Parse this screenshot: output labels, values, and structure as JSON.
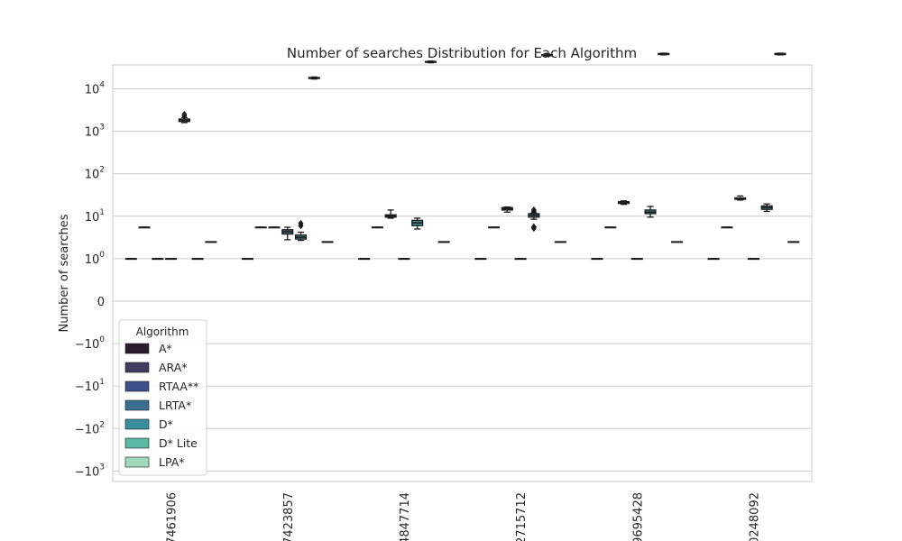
{
  "chart_data": {
    "type": "box",
    "title": "Number of searches Distribution for Each Algorithm",
    "xlabel": "",
    "ylabel": "Number of searches",
    "yscale": "symlog",
    "grid": true,
    "legend_position": "lower-left",
    "yticks": [
      {
        "value": 10000,
        "base": "10",
        "exp": "4"
      },
      {
        "value": 1000,
        "base": "10",
        "exp": "3"
      },
      {
        "value": 100,
        "base": "10",
        "exp": "2"
      },
      {
        "value": 10,
        "base": "10",
        "exp": "1"
      },
      {
        "value": 1,
        "base": "10",
        "exp": "0"
      },
      {
        "value": 0,
        "base": "0",
        "exp": ""
      },
      {
        "value": -1,
        "base": "−10",
        "exp": "0"
      },
      {
        "value": -10,
        "base": "−10",
        "exp": "1"
      },
      {
        "value": -100,
        "base": "−10",
        "exp": "2"
      },
      {
        "value": -1000,
        "base": "−10",
        "exp": "3"
      }
    ],
    "categories": [
      "7461906",
      "7423857",
      "4847714",
      "2715712",
      "9695428",
      "0248092"
    ],
    "legend": {
      "title": "Algorithm",
      "entries": [
        {
          "name": "A*",
          "color": "#2b1d2e"
        },
        {
          "name": "ARA*",
          "color": "#403a5e"
        },
        {
          "name": "RTAA**",
          "color": "#3c4f8a"
        },
        {
          "name": "LRTA*",
          "color": "#3d6e8f"
        },
        {
          "name": "D*",
          "color": "#3b8f9c"
        },
        {
          "name": "D* Lite",
          "color": "#5ab9a5"
        },
        {
          "name": "LPA*",
          "color": "#a1d9bb"
        }
      ]
    },
    "series": [
      {
        "name": "A*",
        "values": [
          {
            "q1": 1,
            "median": 1,
            "q3": 1,
            "min": 1,
            "max": 1,
            "outliers": []
          },
          {
            "q1": 1,
            "median": 1,
            "q3": 1,
            "min": 1,
            "max": 1,
            "outliers": []
          },
          {
            "q1": 1,
            "median": 1,
            "q3": 1,
            "min": 1,
            "max": 1,
            "outliers": []
          },
          {
            "q1": 1,
            "median": 1,
            "q3": 1,
            "min": 1,
            "max": 1,
            "outliers": []
          },
          {
            "q1": 1,
            "median": 1,
            "q3": 1,
            "min": 1,
            "max": 1,
            "outliers": []
          },
          {
            "q1": 1,
            "median": 1,
            "q3": 1,
            "min": 1,
            "max": 1,
            "outliers": []
          }
        ]
      },
      {
        "name": "ARA*",
        "values": [
          {
            "q1": 5.5,
            "median": 5.5,
            "q3": 5.5,
            "min": 5.5,
            "max": 5.5,
            "outliers": []
          },
          {
            "q1": 5.5,
            "median": 5.5,
            "q3": 5.5,
            "min": 5.5,
            "max": 5.5,
            "outliers": []
          },
          {
            "q1": 5.5,
            "median": 5.5,
            "q3": 5.5,
            "min": 5.5,
            "max": 5.5,
            "outliers": []
          },
          {
            "q1": 5.5,
            "median": 5.5,
            "q3": 5.5,
            "min": 5.5,
            "max": 5.5,
            "outliers": []
          },
          {
            "q1": 5.5,
            "median": 5.5,
            "q3": 5.5,
            "min": 5.5,
            "max": 5.5,
            "outliers": []
          },
          {
            "q1": 5.5,
            "median": 5.5,
            "q3": 5.5,
            "min": 5.5,
            "max": 5.5,
            "outliers": []
          }
        ]
      },
      {
        "name": "RTAA**",
        "values": [
          {
            "q1": 1,
            "median": 1,
            "q3": 1,
            "min": 1,
            "max": 1,
            "outliers": []
          },
          {
            "q1": 5.5,
            "median": 5.5,
            "q3": 5.5,
            "min": 5.5,
            "max": 5.5,
            "outliers": []
          },
          {
            "q1": 9.5,
            "median": 10.2,
            "q3": 10.8,
            "min": 9,
            "max": 14,
            "outliers": []
          },
          {
            "q1": 14,
            "median": 15,
            "q3": 16,
            "min": 12.5,
            "max": 16.5,
            "outliers": []
          },
          {
            "q1": 20,
            "median": 21,
            "q3": 22,
            "min": 19,
            "max": 23,
            "outliers": []
          },
          {
            "q1": 25,
            "median": 26,
            "q3": 27,
            "min": 24,
            "max": 30,
            "outliers": []
          }
        ]
      },
      {
        "name": "LRTA*",
        "values": [
          {
            "q1": 1,
            "median": 1,
            "q3": 1,
            "min": 1,
            "max": 1,
            "outliers": []
          },
          {
            "q1": 3.8,
            "median": 4.3,
            "q3": 4.8,
            "min": 2.8,
            "max": 5.5,
            "outliers": []
          },
          {
            "q1": 1,
            "median": 1,
            "q3": 1,
            "min": 1,
            "max": 1,
            "outliers": []
          },
          {
            "q1": 1,
            "median": 1,
            "q3": 1,
            "min": 1,
            "max": 1,
            "outliers": []
          },
          {
            "q1": 1,
            "median": 1,
            "q3": 1,
            "min": 1,
            "max": 1,
            "outliers": []
          },
          {
            "q1": 1,
            "median": 1,
            "q3": 1,
            "min": 1,
            "max": 1,
            "outliers": []
          }
        ]
      },
      {
        "name": "D*",
        "values": [
          {
            "q1": 1700,
            "median": 1800,
            "q3": 1950,
            "min": 1600,
            "max": 2100,
            "outliers": [
              2300,
              2500
            ]
          },
          {
            "q1": 2.9,
            "median": 3.2,
            "q3": 3.6,
            "min": 2.7,
            "max": 4.2,
            "outliers": [
              6,
              6.8
            ]
          },
          {
            "q1": 6,
            "median": 7,
            "q3": 8,
            "min": 5,
            "max": 9,
            "outliers": []
          },
          {
            "q1": 9.5,
            "median": 10.5,
            "q3": 11.5,
            "min": 8.5,
            "max": 12,
            "outliers": [
              5.2,
              5.6,
              13,
              14
            ]
          },
          {
            "q1": 11.5,
            "median": 12.5,
            "q3": 14,
            "min": 9.5,
            "max": 17,
            "outliers": []
          },
          {
            "q1": 14.5,
            "median": 16,
            "q3": 17.5,
            "min": 13,
            "max": 19.5,
            "outliers": []
          }
        ]
      },
      {
        "name": "D* Lite",
        "values": [
          {
            "q1": 1,
            "median": 1,
            "q3": 1,
            "min": 1,
            "max": 1,
            "outliers": []
          },
          {
            "q1": 17500,
            "median": 18000,
            "q3": 18500,
            "min": 17000,
            "max": 19000,
            "outliers": []
          },
          {
            "q1": 42000,
            "median": 43000,
            "q3": 44000,
            "min": 41000,
            "max": 45000,
            "outliers": []
          },
          {
            "q1": 60000,
            "median": 62000,
            "q3": 64000,
            "min": 59000,
            "max": 66000,
            "outliers": []
          },
          {
            "q1": 64000,
            "median": 66000,
            "q3": 68000,
            "min": 63000,
            "max": 69000,
            "outliers": []
          },
          {
            "q1": 64000,
            "median": 66000,
            "q3": 68000,
            "min": 63000,
            "max": 69000,
            "outliers": []
          }
        ]
      },
      {
        "name": "LPA*",
        "values": [
          {
            "q1": 2.5,
            "median": 2.5,
            "q3": 2.5,
            "min": 2.5,
            "max": 2.5,
            "outliers": []
          },
          {
            "q1": 2.5,
            "median": 2.5,
            "q3": 2.5,
            "min": 2.5,
            "max": 2.5,
            "outliers": []
          },
          {
            "q1": 2.5,
            "median": 2.5,
            "q3": 2.5,
            "min": 2.5,
            "max": 2.5,
            "outliers": []
          },
          {
            "q1": 2.5,
            "median": 2.5,
            "q3": 2.5,
            "min": 2.5,
            "max": 2.5,
            "outliers": []
          },
          {
            "q1": 2.5,
            "median": 2.5,
            "q3": 2.5,
            "min": 2.5,
            "max": 2.5,
            "outliers": []
          },
          {
            "q1": 2.5,
            "median": 2.5,
            "q3": 2.5,
            "min": 2.5,
            "max": 2.5,
            "outliers": []
          }
        ]
      }
    ]
  }
}
